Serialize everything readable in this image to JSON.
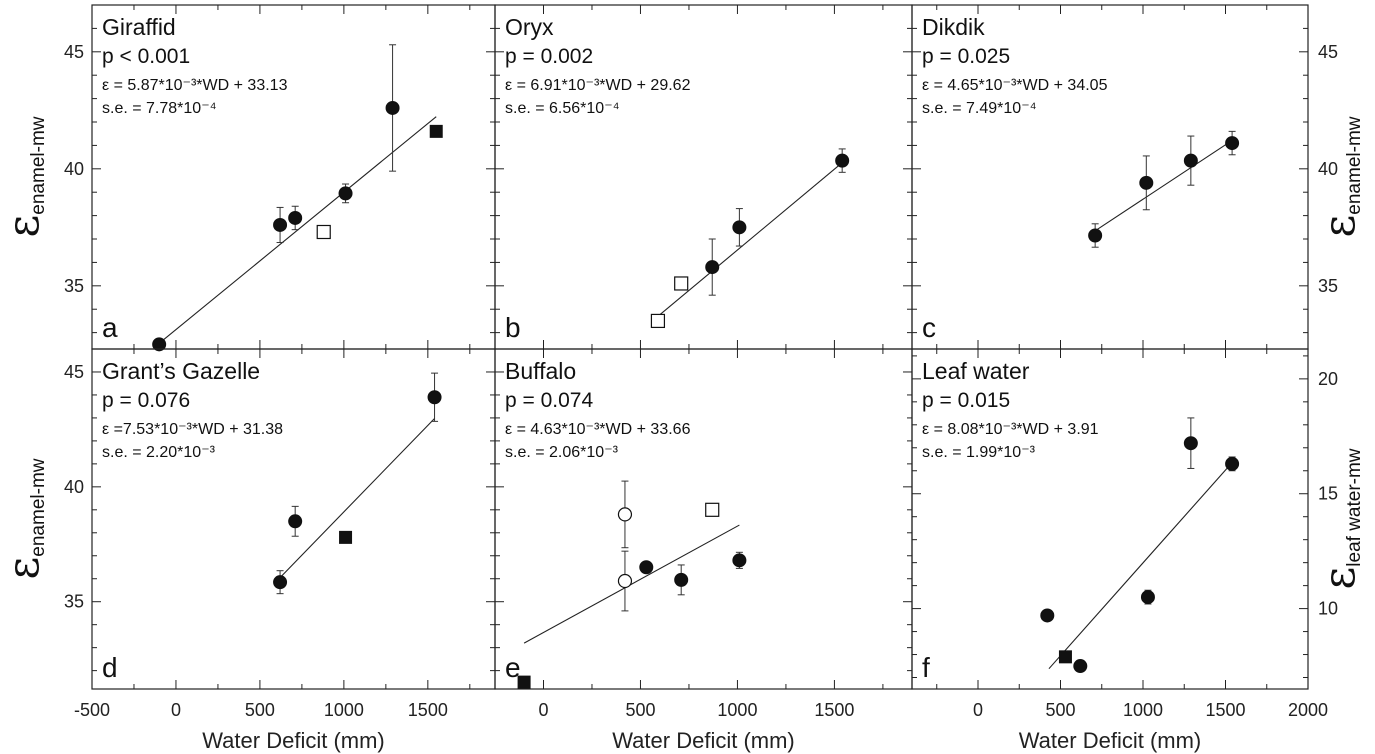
{
  "figure": {
    "x_axis_label": "Water Deficit (mm)",
    "y_label_symbol": "ε",
    "y_label_sub_enamel": "enamel-mw",
    "y_label_sub_leaf": "leaf water-mw",
    "x_ticks": [
      "-500",
      "0",
      "500",
      "1000",
      "1500",
      "2000"
    ],
    "y_ticks_top": [
      "35",
      "40",
      "45"
    ],
    "y_ticks_bottom_left": [
      "35",
      "40",
      "45"
    ],
    "y_ticks_leaf": [
      "10",
      "15",
      "20"
    ]
  },
  "chart_data": [
    {
      "type": "scatter",
      "panel": "a",
      "title": "Giraffid",
      "p_text": "p < 0.001",
      "equation": "ε = 5.87*10⁻³*WD + 33.13",
      "se": "s.e. = 7.78*10⁻⁴",
      "xlim": [
        -500,
        1900
      ],
      "ylim": [
        32.3,
        47
      ],
      "series": [
        {
          "marker": "filled-circle",
          "points": [
            [
              -100,
              32.5
            ],
            [
              620,
              37.6
            ],
            [
              710,
              37.9
            ],
            [
              1010,
              38.95
            ],
            [
              1290,
              42.6
            ]
          ],
          "errors": [
            0,
            0.75,
            0.5,
            0.4,
            2.7
          ]
        },
        {
          "marker": "open-square",
          "points": [
            [
              880,
              37.3
            ]
          ],
          "errors": [
            0
          ]
        },
        {
          "marker": "filled-square",
          "points": [
            [
              1550,
              41.6
            ]
          ],
          "errors": [
            0
          ]
        }
      ],
      "fit": {
        "slope": 0.00587,
        "intercept": 33.13,
        "x_range": [
          -100,
          1550
        ]
      }
    },
    {
      "type": "scatter",
      "panel": "b",
      "title": "Oryx",
      "p_text": "p = 0.002",
      "equation": "ε = 6.91*10⁻³*WD + 29.62",
      "se": "s.e. = 6.56*10⁻⁴",
      "xlim": [
        -250,
        1900
      ],
      "ylim": [
        32.3,
        47
      ],
      "series": [
        {
          "marker": "filled-circle",
          "points": [
            [
              870,
              35.8
            ],
            [
              1010,
              37.5
            ],
            [
              1540,
              40.35
            ]
          ],
          "errors": [
            1.2,
            0.8,
            0.5
          ]
        },
        {
          "marker": "open-square",
          "points": [
            [
              590,
              33.5
            ],
            [
              710,
              35.1
            ]
          ],
          "errors": [
            0,
            0
          ]
        }
      ],
      "fit": {
        "slope": 0.00691,
        "intercept": 29.62,
        "x_range": [
          590,
          1540
        ]
      }
    },
    {
      "type": "scatter",
      "panel": "c",
      "title": "Dikdik",
      "p_text": "p = 0.025",
      "equation": "ε = 4.65*10⁻³*WD + 34.05",
      "se": "s.e. = 7.49*10⁻⁴",
      "xlim": [
        -400,
        2000
      ],
      "ylim": [
        32.3,
        47
      ],
      "series": [
        {
          "marker": "filled-circle",
          "points": [
            [
              710,
              37.15
            ],
            [
              1020,
              39.4
            ],
            [
              1290,
              40.35
            ],
            [
              1540,
              41.1
            ]
          ],
          "errors": [
            0.5,
            1.15,
            1.05,
            0.5
          ]
        }
      ],
      "fit": {
        "slope": 0.00465,
        "intercept": 34.05,
        "x_range": [
          710,
          1540
        ]
      }
    },
    {
      "type": "scatter",
      "panel": "d",
      "title": "Grant’s Gazelle",
      "p_text": "p = 0.076",
      "equation": "ε =7.53*10⁻³*WD + 31.38",
      "se": "s.e. = 2.20*10⁻³",
      "xlim": [
        -500,
        1900
      ],
      "ylim": [
        31.2,
        46
      ],
      "series": [
        {
          "marker": "filled-circle",
          "points": [
            [
              620,
              35.85
            ],
            [
              710,
              38.5
            ],
            [
              1540,
              43.9
            ]
          ],
          "errors": [
            0.5,
            0.65,
            1.05
          ]
        },
        {
          "marker": "filled-square",
          "points": [
            [
              1010,
              37.8
            ]
          ],
          "errors": [
            0
          ]
        }
      ],
      "fit": {
        "slope": 0.00753,
        "intercept": 31.38,
        "x_range": [
          620,
          1540
        ]
      }
    },
    {
      "type": "scatter",
      "panel": "e",
      "title": "Buffalo",
      "p_text": "p = 0.074",
      "equation": "ε = 4.63*10⁻³*WD + 33.66",
      "se": "s.e. = 2.06*10⁻³",
      "xlim": [
        -250,
        1900
      ],
      "ylim": [
        31.2,
        46
      ],
      "series": [
        {
          "marker": "filled-circle",
          "points": [
            [
              530,
              36.5
            ],
            [
              710,
              35.95
            ],
            [
              1010,
              36.8
            ]
          ],
          "errors": [
            0,
            0.65,
            0.35
          ]
        },
        {
          "marker": "open-circle",
          "points": [
            [
              420,
              38.8
            ],
            [
              420,
              35.9
            ]
          ],
          "errors": [
            1.45,
            1.3
          ]
        },
        {
          "marker": "open-square",
          "points": [
            [
              870,
              39.0
            ]
          ],
          "errors": [
            0
          ]
        },
        {
          "marker": "filled-square",
          "points": [
            [
              -100,
              31.5
            ]
          ],
          "errors": [
            0
          ]
        }
      ],
      "fit": {
        "slope": 0.00463,
        "intercept": 33.66,
        "x_range": [
          -100,
          1010
        ]
      }
    },
    {
      "type": "scatter",
      "panel": "f",
      "title": "Leaf water",
      "p_text": "p = 0.015",
      "equation": "ε = 8.08*10⁻³*WD + 3.91",
      "se": "s.e. = 1.99*10⁻³",
      "xlim": [
        -400,
        2000
      ],
      "ylim": [
        6.5,
        21.3
      ],
      "series": [
        {
          "marker": "filled-circle",
          "points": [
            [
              420,
              9.7
            ],
            [
              620,
              7.5
            ],
            [
              1030,
              10.5
            ],
            [
              1290,
              17.2
            ],
            [
              1540,
              16.3
            ]
          ],
          "errors": [
            0,
            0,
            0.3,
            1.1,
            0.3
          ]
        },
        {
          "marker": "filled-square",
          "points": [
            [
              530,
              7.9
            ]
          ],
          "errors": [
            0
          ]
        }
      ],
      "fit": {
        "slope": 0.00808,
        "intercept": 3.91,
        "x_range": [
          430,
          1540
        ]
      }
    }
  ]
}
